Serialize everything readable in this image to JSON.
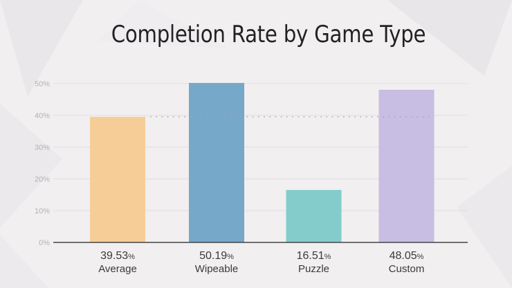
{
  "chart_data": {
    "type": "bar",
    "title": "Completion Rate by Game Type",
    "xlabel": "",
    "ylabel": "",
    "ylim": [
      0,
      50
    ],
    "yticks": [
      0,
      10,
      20,
      30,
      40,
      50
    ],
    "ytick_labels": [
      "0%",
      "10%",
      "20%",
      "30%",
      "40%",
      "50%"
    ],
    "grid": true,
    "categories": [
      "Average",
      "Wipeable",
      "Puzzle",
      "Custom"
    ],
    "values": [
      39.53,
      50.19,
      16.51,
      48.05
    ],
    "value_labels": [
      "39.53",
      "50.19",
      "16.51",
      "48.05"
    ],
    "value_suffix": "%",
    "colors": [
      "#f7cd97",
      "#75a8c9",
      "#84cccb",
      "#c8bde2"
    ],
    "reference_line": {
      "value": 39.53,
      "style": "dotted",
      "label": "Average"
    }
  }
}
